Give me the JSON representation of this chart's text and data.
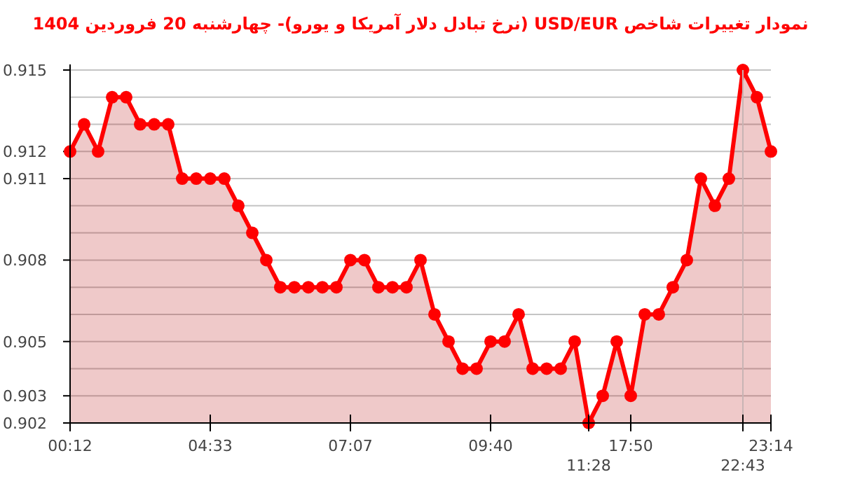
{
  "chart_data": {
    "type": "area",
    "title": "نمودار تغییرات شاخص USD/EUR (نرخ تبادل دلار آمریکا و یورو)- چهارشنبه  20 فروردین 1404",
    "categories": [
      "00:12",
      null,
      null,
      null,
      null,
      null,
      null,
      null,
      null,
      null,
      "04:33",
      null,
      null,
      null,
      null,
      null,
      null,
      null,
      null,
      null,
      "07:07",
      null,
      null,
      null,
      null,
      null,
      null,
      null,
      null,
      null,
      "09:40",
      null,
      null,
      null,
      null,
      null,
      null,
      "11:28",
      null,
      null,
      "17:50",
      null,
      null,
      null,
      null,
      null,
      null,
      null,
      "22:43",
      null,
      "23:14"
    ],
    "values": [
      0.912,
      0.913,
      0.912,
      0.914,
      0.914,
      0.913,
      0.913,
      0.913,
      0.911,
      0.911,
      0.911,
      0.911,
      0.91,
      0.909,
      0.908,
      0.907,
      0.907,
      0.907,
      0.907,
      0.907,
      0.908,
      0.908,
      0.907,
      0.907,
      0.907,
      0.908,
      0.906,
      0.905,
      0.904,
      0.904,
      0.905,
      0.905,
      0.906,
      0.904,
      0.904,
      0.904,
      0.905,
      0.902,
      0.903,
      0.905,
      0.903,
      0.906,
      0.906,
      0.907,
      0.908,
      0.911,
      0.91,
      0.911,
      0.915,
      0.914,
      0.912
    ],
    "color": "#ff0000",
    "marker": "circle",
    "grid": "y",
    "ylim": [
      0.902,
      0.915
    ],
    "yticks": [
      0.902,
      0.903,
      {
        "value": 0.904,
        "label": null
      },
      0.905,
      {
        "value": 0.906,
        "label": null
      },
      {
        "value": 0.907,
        "label": null
      },
      0.908,
      {
        "value": 0.909,
        "label": null
      },
      {
        "value": 0.91,
        "label": null
      },
      0.911,
      0.912,
      {
        "value": 0.913,
        "label": null
      },
      {
        "value": 0.914,
        "label": null
      },
      0.915
    ],
    "ref_lines": [
      {
        "axis": "x",
        "value": "22:43",
        "color": "#c8b4b4"
      }
    ]
  }
}
